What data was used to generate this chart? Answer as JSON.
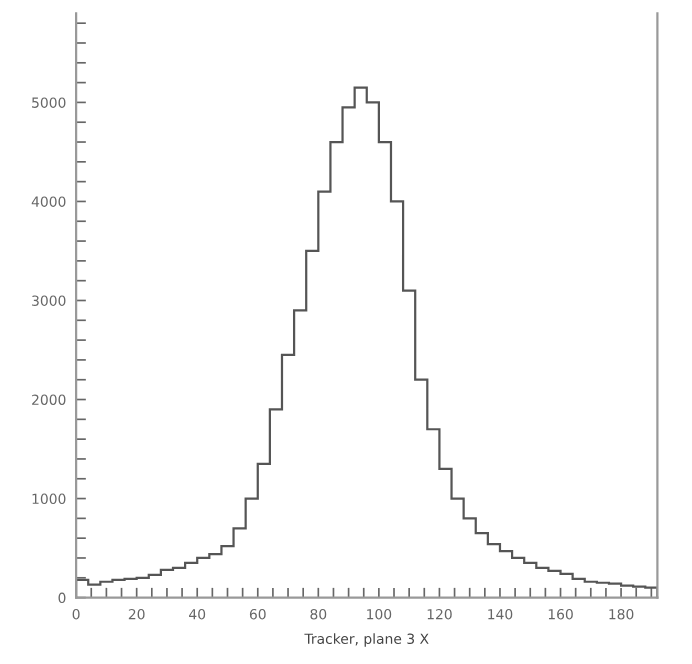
{
  "chart_data": {
    "type": "histogram",
    "xlabel": "Tracker, plane 3 X",
    "color": "#555555",
    "bins": [
      0,
      4,
      8,
      12,
      16,
      20,
      24,
      28,
      32,
      36,
      40,
      44,
      48,
      52,
      56,
      60,
      64,
      68,
      72,
      76,
      80,
      84,
      88,
      92,
      96,
      100,
      104,
      108,
      112,
      116,
      120,
      124,
      128,
      132,
      136,
      140,
      144,
      148,
      152,
      156,
      160,
      164,
      168,
      172,
      176,
      180,
      184,
      188,
      192
    ],
    "values": [
      180,
      130,
      160,
      180,
      190,
      200,
      230,
      280,
      300,
      350,
      400,
      440,
      520,
      700,
      1000,
      1350,
      1900,
      2450,
      2900,
      3500,
      4100,
      4600,
      4950,
      5150,
      5000,
      4600,
      4000,
      3100,
      2200,
      1700,
      1300,
      1000,
      800,
      650,
      540,
      470,
      400,
      350,
      300,
      270,
      240,
      190,
      160,
      150,
      140,
      120,
      110,
      100
    ],
    "xlim": [
      0,
      192
    ],
    "ylim": [
      0,
      5900
    ],
    "xticks": [
      0,
      {
        "value": 5,
        "label": null
      },
      {
        "value": 10,
        "label": null
      },
      {
        "value": 15,
        "label": null
      },
      20,
      {
        "value": 25,
        "label": null
      },
      {
        "value": 30,
        "label": null
      },
      {
        "value": 35,
        "label": null
      },
      40,
      {
        "value": 45,
        "label": null
      },
      {
        "value": 50,
        "label": null
      },
      {
        "value": 55,
        "label": null
      },
      60,
      {
        "value": 65,
        "label": null
      },
      {
        "value": 70,
        "label": null
      },
      {
        "value": 75,
        "label": null
      },
      80,
      {
        "value": 85,
        "label": null
      },
      {
        "value": 90,
        "label": null
      },
      {
        "value": 95,
        "label": null
      },
      100,
      {
        "value": 105,
        "label": null
      },
      {
        "value": 110,
        "label": null
      },
      {
        "value": 115,
        "label": null
      },
      120,
      {
        "value": 125,
        "label": null
      },
      {
        "value": 130,
        "label": null
      },
      {
        "value": 135,
        "label": null
      },
      140,
      {
        "value": 145,
        "label": null
      },
      {
        "value": 150,
        "label": null
      },
      {
        "value": 155,
        "label": null
      },
      160,
      {
        "value": 165,
        "label": null
      },
      {
        "value": 170,
        "label": null
      },
      {
        "value": 175,
        "label": null
      },
      180,
      {
        "value": 185,
        "label": null
      },
      {
        "value": 190,
        "label": null
      }
    ],
    "yticks": [
      0,
      {
        "value": 200,
        "label": null
      },
      {
        "value": 400,
        "label": null
      },
      {
        "value": 600,
        "label": null
      },
      {
        "value": 800,
        "label": null
      },
      1000,
      {
        "value": 1200,
        "label": null
      },
      {
        "value": 1400,
        "label": null
      },
      {
        "value": 1600,
        "label": null
      },
      {
        "value": 1800,
        "label": null
      },
      2000,
      {
        "value": 2200,
        "label": null
      },
      {
        "value": 2400,
        "label": null
      },
      {
        "value": 2600,
        "label": null
      },
      {
        "value": 2800,
        "label": null
      },
      3000,
      {
        "value": 3200,
        "label": null
      },
      {
        "value": 3400,
        "label": null
      },
      {
        "value": 3600,
        "label": null
      },
      {
        "value": 3800,
        "label": null
      },
      4000,
      {
        "value": 4200,
        "label": null
      },
      {
        "value": 4400,
        "label": null
      },
      {
        "value": 4600,
        "label": null
      },
      {
        "value": 4800,
        "label": null
      },
      5000,
      {
        "value": 5200,
        "label": null
      },
      {
        "value": 5400,
        "label": null
      },
      {
        "value": 5600,
        "label": null
      },
      {
        "value": 5800,
        "label": null
      }
    ],
    "grid": false,
    "legend": false
  }
}
